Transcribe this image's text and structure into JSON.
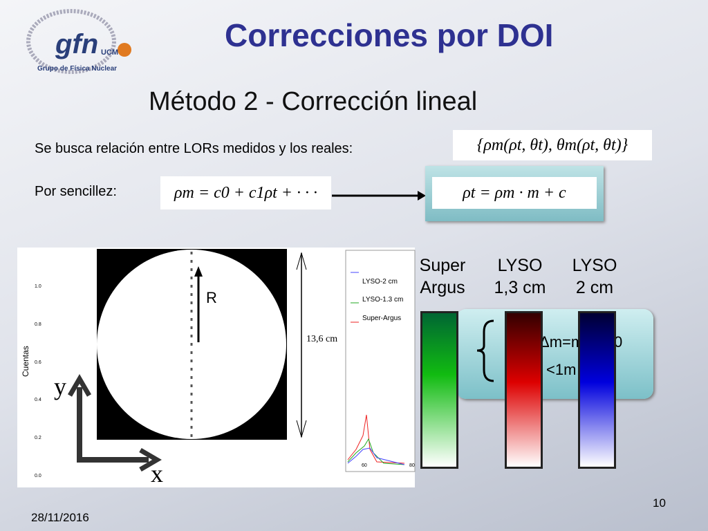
{
  "logo": {
    "name": "gfn",
    "sub": "UCM",
    "caption": "Grupo de Física Nuclear"
  },
  "title": "Correcciones por DOI",
  "subtitle": "Método 2 - Corrección lineal",
  "line1": {
    "text": "Se busca relación entre LORs medidos y los reales:",
    "formula": "{ρm(ρt, θt), θm(ρt, θt)}"
  },
  "line2": {
    "text": "Por sencillez:",
    "formula": "ρm = c0 + c1ρt + · · ·",
    "result": "ρt = ρm · m + c"
  },
  "figure": {
    "y_label": "Cuentas",
    "y_ticks": [
      "1.0",
      "0.8",
      "0.6",
      "0.4",
      "0.2",
      "0.0"
    ],
    "x_ticks": [
      "60",
      "80"
    ],
    "legend": [
      "LYSO-2 cm",
      "LYSO-1.3 cm",
      "Super-Argus"
    ],
    "radius_label": "R",
    "diameter_label": "13,6 cm",
    "axis_y": "y",
    "axis_x": "x"
  },
  "crystals": [
    {
      "label": "Super Argus"
    },
    {
      "label": "LYSO 1,3 cm"
    },
    {
      "label": "LYSO 2 cm"
    }
  ],
  "note": {
    "line1": "Δm=m",
    "line1_end": "0",
    "line2": "<1m"
  },
  "footer": {
    "date": "28/11/2016",
    "page": "10"
  }
}
